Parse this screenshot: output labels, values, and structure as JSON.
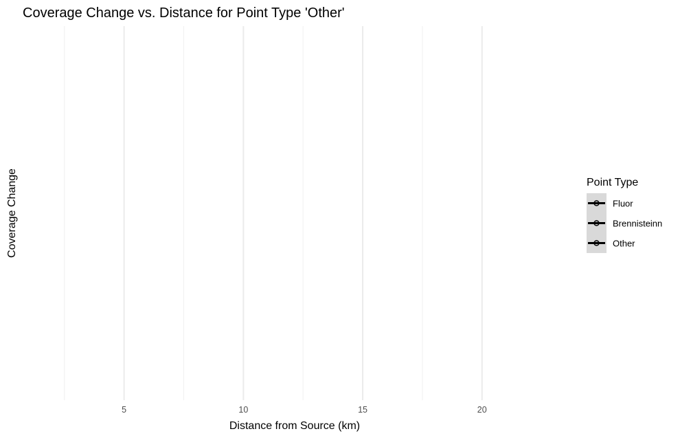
{
  "chart_data": {
    "type": "line",
    "title": "Coverage Change vs. Distance for Point Type 'Other'",
    "xlabel": "Distance from Source (km)",
    "ylabel": "Coverage Change",
    "xlim": [
      0.75,
      23.75
    ],
    "x_ticks": [
      5,
      10,
      15,
      20
    ],
    "x_tick_labels": [
      "5",
      "10",
      "15",
      "20"
    ],
    "x_minor_ticks": [
      2.5,
      7.5,
      12.5,
      17.5
    ],
    "grid": true,
    "legend": {
      "title": "Point Type",
      "placement": "right",
      "entries": [
        "Fluor",
        "Brennisteinn",
        "Other"
      ]
    },
    "series": [
      {
        "name": "Fluor",
        "x": [],
        "y": []
      },
      {
        "name": "Brennisteinn",
        "x": [],
        "y": []
      },
      {
        "name": "Other",
        "x": [],
        "y": []
      }
    ]
  }
}
